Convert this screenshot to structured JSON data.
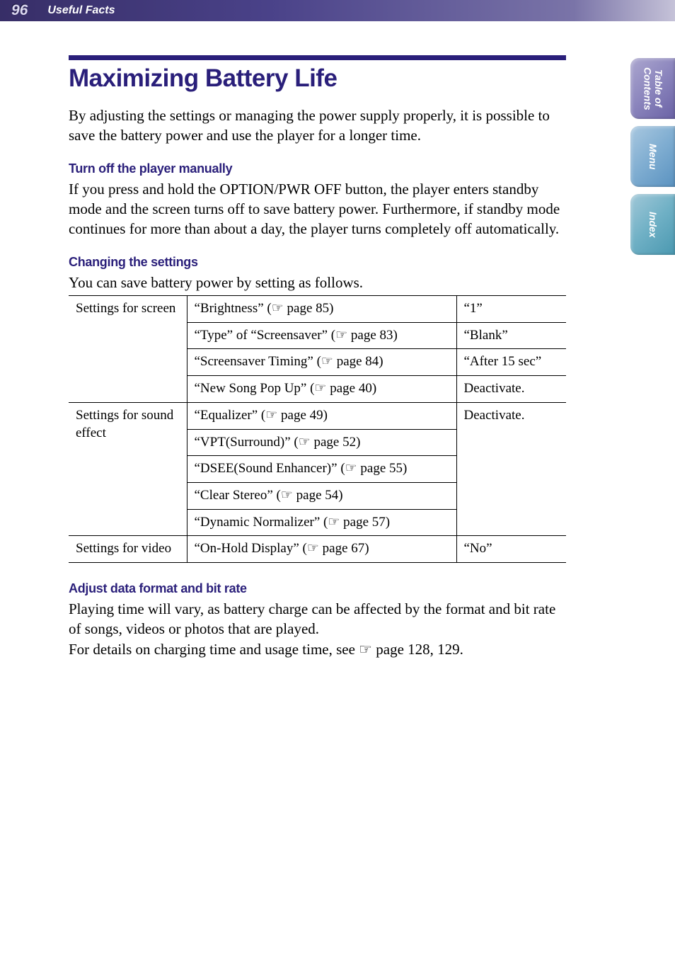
{
  "header": {
    "page_number": "96",
    "section": "Useful Facts"
  },
  "side_tabs": [
    {
      "label": "Table of\nContents"
    },
    {
      "label": "Menu"
    },
    {
      "label": "Index"
    }
  ],
  "main": {
    "title": "Maximizing Battery Life",
    "intro": "By adjusting the settings or managing the power supply properly, it is possible to save the battery power and use the player for a longer time.",
    "sections": [
      {
        "heading": "Turn off the player manually",
        "body": "If you press and hold the OPTION/PWR OFF button, the player enters standby mode and the screen turns off to save battery power. Furthermore, if standby mode continues for more than about a day, the player turns completely off automatically."
      },
      {
        "heading": "Changing the settings",
        "body": "You can save battery power by setting as follows."
      },
      {
        "heading": "Adjust data format and bit rate",
        "body": "Playing time will vary, as battery charge can be affected by the format and bit rate of songs, videos or photos that are played.",
        "body2": "For details on charging time and usage time, see ☞ page 128, 129."
      }
    ],
    "table": {
      "rows": [
        {
          "col1": "Settings for screen",
          "col2": "“Brightness” (☞ page 85)",
          "col3": "“1”",
          "rowspan1": 4
        },
        {
          "col2": "“Type” of “Screensaver” (☞ page 83)",
          "col3": "“Blank”"
        },
        {
          "col2": "“Screensaver Timing” (☞ page 84)",
          "col3": "“After 15 sec”"
        },
        {
          "col2": "“New Song Pop Up” (☞ page 40)",
          "col3": "Deactivate."
        },
        {
          "col1": "Settings for sound effect",
          "col2": "“Equalizer” (☞ page 49)",
          "col3": "Deactivate.",
          "rowspan1": 5,
          "rowspan3": 5
        },
        {
          "col2": "“VPT(Surround)” (☞ page 52)"
        },
        {
          "col2": "“DSEE(Sound Enhancer)” (☞ page 55)"
        },
        {
          "col2": "“Clear Stereo” (☞ page 54)"
        },
        {
          "col2": "“Dynamic Normalizer” (☞ page 57)"
        },
        {
          "col1": "Settings for video",
          "col2": "“On-Hold Display” (☞ page 67)",
          "col3": "“No”"
        }
      ]
    }
  },
  "colors": {
    "accent": "#2a1f7a",
    "header_gradient_start": "#372e67",
    "header_gradient_end": "#c5c2d8"
  }
}
